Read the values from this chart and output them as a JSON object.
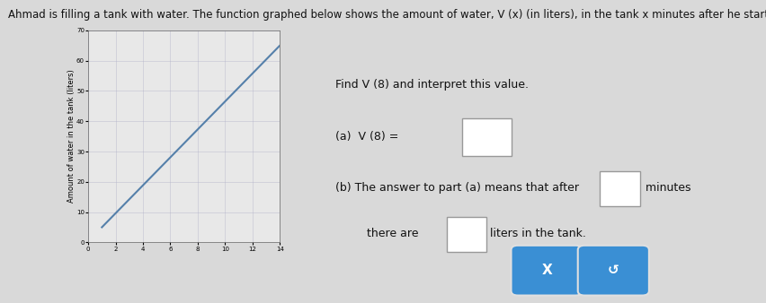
{
  "title_text": "Ahmad is filling a tank with water. The function graphed below shows the amount of water, V (x) (in liters), in the tank x minutes after he started.",
  "ylabel": "Amount of water in the tank (liters)",
  "xlabel": "",
  "xlim": [
    0,
    14
  ],
  "ylim": [
    0,
    70
  ],
  "xticks": [
    0,
    2,
    4,
    6,
    8,
    10,
    12,
    14
  ],
  "yticks": [
    0,
    10,
    20,
    30,
    40,
    50,
    60,
    70
  ],
  "ytick_labels": [
    "0",
    "10",
    "20",
    "30",
    "40",
    "50",
    "60",
    "70"
  ],
  "line_x": [
    1,
    14
  ],
  "line_y": [
    5,
    65
  ],
  "line_color": "#5580aa",
  "line_width": 1.5,
  "background_color": "#d9d9d9",
  "graph_bg_color": "#e8e8e8",
  "grid_color": "#b0b0c8",
  "grid_alpha": 0.7,
  "find_v8_text": "Find V (8) and interpret this value.",
  "part_a_label": "(a)  V (8) = ",
  "part_b_line1": "(b) The answer to part (a) means that after",
  "part_b_line2": "there are",
  "minutes_text": "minutes",
  "liters_text": "liters in the tank.",
  "box_color": "#3a8fd4",
  "box_text_x": "X",
  "box_text_undo": "↺",
  "title_fontsize": 8.5,
  "axis_tick_fontsize": 5,
  "ylabel_fontsize": 6,
  "text_fontsize": 9,
  "button_fontsize": 11
}
